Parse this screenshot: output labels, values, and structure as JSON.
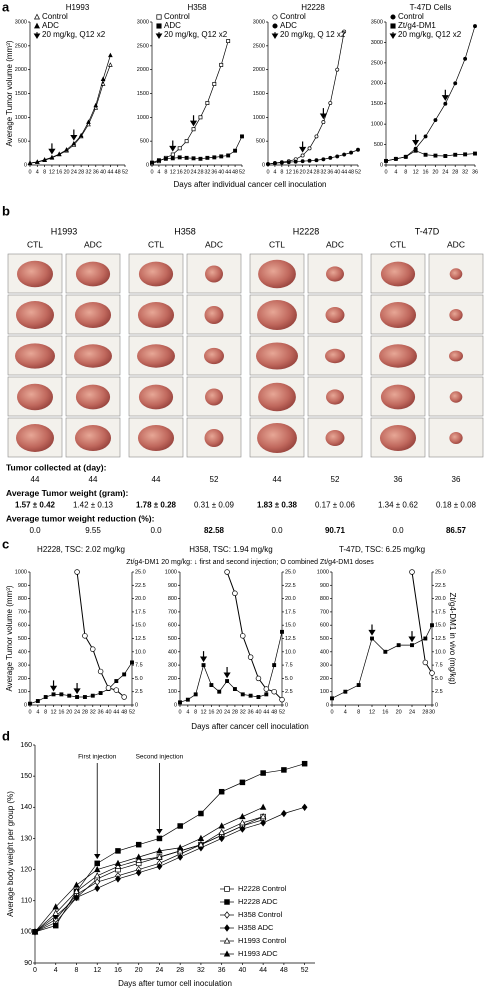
{
  "panels": [
    "a",
    "b",
    "c",
    "d"
  ],
  "chart_data": [
    {
      "type": "line",
      "title": "H1993",
      "ylabel": "Average Tumor volume (mm³)",
      "xlabel": "Days after individual cancer cell inoculation",
      "xlim": [
        0,
        52
      ],
      "xticks": [
        0,
        4,
        8,
        12,
        16,
        20,
        24,
        28,
        32,
        36,
        40,
        44,
        48,
        52
      ],
      "ylim": [
        0,
        3000
      ],
      "yticks": [
        0,
        500,
        1000,
        1500,
        2000,
        2500,
        3000
      ],
      "legend": "upper left",
      "dose_label": "20 mg/kg, Q12 x2",
      "dose_x": [
        12,
        24
      ],
      "series": [
        {
          "name": "Control",
          "color": "#000000",
          "marker": "triangle-open",
          "x": [
            0,
            4,
            8,
            12,
            16,
            20,
            24,
            28,
            32,
            36,
            40,
            44
          ],
          "values": [
            40,
            60,
            100,
            150,
            220,
            300,
            420,
            600,
            850,
            1200,
            1700,
            2100
          ]
        },
        {
          "name": "ADC",
          "color": "#000000",
          "marker": "triangle-filled",
          "x": [
            0,
            4,
            8,
            12,
            16,
            20,
            24,
            28,
            32,
            36,
            40,
            44
          ],
          "values": [
            40,
            65,
            110,
            160,
            230,
            320,
            450,
            620,
            900,
            1250,
            1800,
            2300
          ]
        }
      ]
    },
    {
      "type": "line",
      "title": "H358",
      "xlim": [
        0,
        52
      ],
      "xticks": [
        0,
        4,
        8,
        12,
        16,
        20,
        24,
        28,
        32,
        36,
        40,
        44,
        48,
        52
      ],
      "ylim": [
        0,
        3000
      ],
      "yticks": [
        0,
        500,
        1000,
        1500,
        2000,
        2500,
        3000
      ],
      "legend": "upper left",
      "dose_label": "20 mg/kg, Q12 x2",
      "dose_x": [
        12,
        24
      ],
      "series": [
        {
          "name": "Control",
          "color": "#000000",
          "marker": "square-open",
          "x": [
            0,
            4,
            8,
            12,
            16,
            20,
            24,
            28,
            32,
            36,
            40,
            44
          ],
          "values": [
            30,
            80,
            150,
            220,
            350,
            500,
            750,
            1000,
            1300,
            1700,
            2100,
            2600
          ]
        },
        {
          "name": "ADC",
          "color": "#000000",
          "marker": "square-filled",
          "x": [
            0,
            4,
            8,
            12,
            16,
            20,
            24,
            28,
            32,
            36,
            40,
            44,
            48,
            52
          ],
          "values": [
            50,
            100,
            130,
            140,
            160,
            150,
            140,
            130,
            150,
            160,
            180,
            200,
            300,
            600
          ]
        }
      ]
    },
    {
      "type": "line",
      "title": "H2228",
      "xlim": [
        0,
        52
      ],
      "xticks": [
        0,
        4,
        8,
        12,
        16,
        20,
        24,
        28,
        32,
        36,
        40,
        44,
        48,
        52
      ],
      "ylim": [
        0,
        3000
      ],
      "yticks": [
        0,
        500,
        1000,
        1500,
        2000,
        2500,
        3000
      ],
      "legend": "upper left",
      "dose_label": "20 mg/kg, Q 12 x2",
      "dose_x": [
        20,
        32
      ],
      "series": [
        {
          "name": "Control",
          "color": "#000000",
          "marker": "circle-open",
          "x": [
            0,
            4,
            8,
            12,
            16,
            20,
            24,
            28,
            32,
            36,
            40,
            44
          ],
          "values": [
            20,
            40,
            60,
            80,
            120,
            200,
            350,
            600,
            900,
            1300,
            2000,
            2800
          ]
        },
        {
          "name": "ADC",
          "color": "#000000",
          "marker": "circle-filled",
          "x": [
            0,
            4,
            8,
            12,
            16,
            20,
            24,
            28,
            32,
            36,
            40,
            44,
            48,
            52
          ],
          "values": [
            20,
            40,
            50,
            60,
            70,
            80,
            90,
            100,
            120,
            150,
            180,
            220,
            260,
            320
          ]
        }
      ]
    },
    {
      "type": "line",
      "title": "T-47D Cells",
      "xlim": [
        0,
        36
      ],
      "xticks": [
        0,
        4,
        8,
        12,
        16,
        20,
        24,
        28,
        32,
        36
      ],
      "ylim": [
        0,
        3500
      ],
      "yticks": [
        0,
        500,
        1000,
        1500,
        2000,
        2500,
        3000,
        3500
      ],
      "legend": "upper left",
      "dose_label": "20 mg/kg, Q12 x2",
      "dose_x": [
        12,
        24
      ],
      "series": [
        {
          "name": "Control",
          "color": "#000000",
          "marker": "circle-filled",
          "x": [
            0,
            4,
            8,
            12,
            16,
            20,
            24,
            28,
            32,
            36
          ],
          "values": [
            100,
            150,
            200,
            400,
            700,
            1100,
            1500,
            2000,
            2600,
            3400
          ]
        },
        {
          "name": "Zt/g4-DM1",
          "color": "#000000",
          "marker": "square-filled",
          "x": [
            0,
            4,
            8,
            12,
            16,
            20,
            24,
            28,
            32,
            36
          ],
          "values": [
            100,
            150,
            200,
            350,
            250,
            230,
            220,
            250,
            260,
            280
          ]
        }
      ]
    },
    {
      "type": "line",
      "title": "H2228, TSC: 2.02 mg/kg",
      "subtitle": "Zt/g4-DM1 20 mg/kg: ↓ first and second injection; O combined Zt/g4-DM1 doses",
      "ylabel": "Average Tumor volume (mm³)",
      "xlabel": "Days after cancer cell inoculation",
      "xlim": [
        0,
        52
      ],
      "xticks": [
        0,
        4,
        8,
        12,
        16,
        20,
        24,
        28,
        32,
        36,
        40,
        44,
        48,
        52
      ],
      "ylim": [
        0,
        1000
      ],
      "yticks": [
        0,
        100,
        200,
        300,
        400,
        500,
        600,
        700,
        800,
        900,
        1000
      ],
      "y2lim": [
        0,
        25
      ],
      "y2ticks": [
        0,
        2.5,
        {
          "value": 5,
          "label": "5.0"
        },
        7.5,
        {
          "value": 10,
          "label": "10.0"
        },
        12.5,
        {
          "value": 15,
          "label": "15.0"
        },
        17.5,
        {
          "value": 20,
          "label": "20.0"
        },
        22.5,
        {
          "value": 25,
          "label": "25.0"
        }
      ],
      "dose_x": [
        12,
        24
      ],
      "series": [
        {
          "color": "#000000",
          "marker": "square-filled",
          "x": [
            0,
            4,
            8,
            12,
            16,
            20,
            24,
            28,
            32,
            36,
            40,
            44,
            48,
            52
          ],
          "values": [
            10,
            30,
            60,
            80,
            80,
            70,
            60,
            60,
            70,
            90,
            120,
            180,
            230,
            320
          ]
        },
        {
          "color": "#000000",
          "marker": "circle-open",
          "axis": "y2",
          "x": [
            24,
            28,
            32,
            36,
            40,
            44,
            48
          ],
          "values": [
            25,
            13,
            10.5,
            6.3,
            3.2,
            2.8,
            1.5
          ]
        }
      ]
    },
    {
      "type": "line",
      "title": "H358, TSC: 1.94 mg/kg",
      "xlim": [
        0,
        52
      ],
      "xticks": [
        0,
        4,
        8,
        12,
        16,
        20,
        24,
        28,
        32,
        36,
        40,
        44,
        48,
        52
      ],
      "ylim": [
        0,
        1000
      ],
      "yticks": [
        0,
        100,
        200,
        300,
        400,
        500,
        600,
        700,
        800,
        900,
        1000
      ],
      "y2lim": [
        0,
        25
      ],
      "y2ticks": [
        0,
        2.5,
        {
          "value": 5,
          "label": "5.0"
        },
        7.5,
        {
          "value": 10,
          "label": "10.0"
        },
        12.5,
        {
          "value": 15,
          "label": "15.0"
        },
        17.5,
        {
          "value": 20,
          "label": "20.0"
        },
        22.5,
        {
          "value": 25,
          "label": "25.0"
        }
      ],
      "dose_x": [
        12,
        24
      ],
      "series": [
        {
          "color": "#000000",
          "marker": "square-filled",
          "x": [
            0,
            4,
            8,
            12,
            16,
            20,
            24,
            28,
            32,
            36,
            40,
            44,
            48,
            52
          ],
          "values": [
            20,
            40,
            80,
            300,
            150,
            100,
            180,
            120,
            80,
            70,
            60,
            80,
            300,
            550
          ]
        },
        {
          "color": "#000000",
          "marker": "circle-open",
          "axis": "y2",
          "x": [
            24,
            28,
            32,
            36,
            40,
            44,
            48,
            52
          ],
          "values": [
            25,
            21,
            13,
            9,
            5,
            3,
            2.5,
            1
          ]
        }
      ]
    },
    {
      "type": "line",
      "title": "T-47D, TSC: 6.25 mg/kg",
      "y2label": "Zt/g4-DM1 in vivo (mg/kg)",
      "xlim": [
        0,
        30
      ],
      "xticks": [
        0,
        4,
        8,
        12,
        16,
        20,
        24,
        28,
        30
      ],
      "ylim": [
        0,
        1000
      ],
      "yticks": [
        0,
        100,
        200,
        300,
        400,
        500,
        600,
        700,
        800,
        900,
        1000
      ],
      "y2lim": [
        0,
        25
      ],
      "y2ticks": [
        0,
        2.5,
        {
          "value": 5,
          "label": "5.0"
        },
        7.5,
        {
          "value": 10,
          "label": "10.0"
        },
        12.5,
        {
          "value": 15,
          "label": "15.0"
        },
        17.5,
        {
          "value": 20,
          "label": "20.0"
        },
        22.5,
        {
          "value": 25,
          "label": "25.0"
        }
      ],
      "dose_x": [
        12,
        24
      ],
      "series": [
        {
          "color": "#000000",
          "marker": "square-filled",
          "x": [
            0,
            4,
            8,
            12,
            16,
            20,
            24,
            28,
            30
          ],
          "values": [
            50,
            100,
            150,
            500,
            400,
            450,
            450,
            500,
            600
          ]
        },
        {
          "color": "#000000",
          "marker": "circle-open",
          "axis": "y2",
          "x": [
            24,
            28,
            30
          ],
          "values": [
            25,
            8,
            6
          ]
        }
      ]
    },
    {
      "type": "line",
      "ylabel": "Average body weight per group (%)",
      "xlabel": "Days after tumor cell inoculation",
      "xlim": [
        0,
        54
      ],
      "xticks": [
        0,
        4,
        8,
        12,
        16,
        20,
        24,
        28,
        32,
        36,
        40,
        44,
        48,
        52
      ],
      "ylim": [
        90,
        160
      ],
      "yticks": [
        90,
        100,
        110,
        120,
        130,
        140,
        150,
        160
      ],
      "legend": "lower right",
      "annotations": [
        {
          "text": "First injection",
          "x": 12
        },
        {
          "text": "Second injection",
          "x": 24
        }
      ],
      "series": [
        {
          "name": "H2228 Control",
          "color": "#000000",
          "marker": "square-open",
          "x": [
            0,
            4,
            8,
            12,
            16,
            20,
            24,
            28,
            32,
            36,
            40,
            44,
            48,
            52
          ],
          "values": [
            100,
            103,
            111,
            117,
            120,
            122,
            124,
            126,
            128,
            131,
            134,
            137,
            null,
            null
          ]
        },
        {
          "name": "H2228 ADC",
          "color": "#000000",
          "marker": "square-filled",
          "x": [
            0,
            4,
            8,
            12,
            16,
            20,
            24,
            28,
            32,
            36,
            40,
            44,
            48,
            52
          ],
          "values": [
            100,
            102,
            113,
            122,
            126,
            128,
            130,
            134,
            138,
            145,
            148,
            151,
            152,
            154
          ]
        },
        {
          "name": "H358 Control",
          "color": "#000000",
          "marker": "diamond-open",
          "x": [
            0,
            4,
            8,
            12,
            16,
            20,
            24,
            28,
            32,
            36,
            40,
            44,
            48,
            52
          ],
          "values": [
            100,
            104,
            112,
            116,
            118,
            120,
            122,
            125,
            128,
            131,
            134,
            136,
            null,
            null
          ]
        },
        {
          "name": "H358 ADC",
          "color": "#000000",
          "marker": "diamond-filled",
          "x": [
            0,
            4,
            8,
            12,
            16,
            20,
            24,
            28,
            32,
            36,
            40,
            44,
            48,
            52
          ],
          "values": [
            100,
            105,
            111,
            114,
            117,
            119,
            121,
            124,
            127,
            130,
            133,
            135,
            138,
            140
          ]
        },
        {
          "name": "H1993 Control",
          "color": "#000000",
          "marker": "triangle-open",
          "x": [
            0,
            4,
            8,
            12,
            16,
            20,
            24,
            28,
            32,
            36,
            40,
            44,
            48,
            52
          ],
          "values": [
            100,
            106,
            113,
            118,
            121,
            123,
            124,
            126,
            128,
            132,
            135,
            137,
            null,
            null
          ]
        },
        {
          "name": "H1993 ADC",
          "color": "#000000",
          "marker": "triangle-filled",
          "x": [
            0,
            4,
            8,
            12,
            16,
            20,
            24,
            28,
            32,
            36,
            40,
            44,
            48,
            52
          ],
          "values": [
            100,
            108,
            115,
            120,
            122,
            124,
            126,
            127,
            130,
            134,
            137,
            140,
            null,
            null
          ]
        }
      ]
    }
  ],
  "panel_b": {
    "groups": [
      {
        "name": "H1993",
        "cols": [
          "CTL",
          "ADC"
        ]
      },
      {
        "name": "H358",
        "cols": [
          "CTL",
          "ADC"
        ]
      },
      {
        "name": "H2228",
        "cols": [
          "CTL",
          "ADC"
        ]
      },
      {
        "name": "T-47D",
        "cols": [
          "CTL",
          "ADC"
        ]
      }
    ],
    "rows": [
      {
        "label": "Tumor collected at (day):",
        "values": [
          "44",
          "44",
          "44",
          "52",
          "44",
          "52",
          "36",
          "36"
        ]
      },
      {
        "label": "Average Tumor weight (gram):",
        "values": [
          "1.57 ± 0.42",
          "1.42 ± 0.13",
          "1.78 ± 0.28",
          "0.31 ± 0.09",
          "1.83 ± 0.38",
          "0.17 ± 0.06",
          "1.34 ± 0.62",
          "0.18 ± 0.08"
        ]
      },
      {
        "label": "Average tumor weight reduction (%):",
        "values": [
          "0.0",
          "9.55",
          "0.0",
          "82.58",
          "0.0",
          "90.71",
          "0.0",
          "86.57"
        ]
      }
    ]
  }
}
